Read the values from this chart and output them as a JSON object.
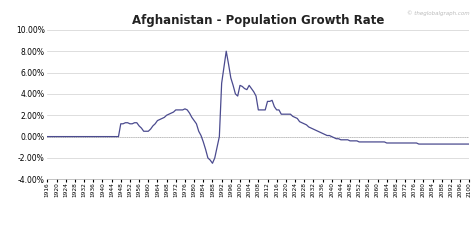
{
  "title": "Afghanistan - Population Growth Rate",
  "watermark": "© theglobalgraph.com",
  "line_color": "#4b4b8f",
  "background_color": "#ffffff",
  "grid_color": "#d0d0d0",
  "zero_line_color": "#b0b0b0",
  "ylim": [
    -0.04,
    0.1
  ],
  "yticks": [
    -0.04,
    -0.02,
    0.0,
    0.02,
    0.04,
    0.06,
    0.08,
    0.1
  ],
  "years": [
    1916,
    1917,
    1918,
    1919,
    1920,
    1921,
    1922,
    1923,
    1924,
    1925,
    1926,
    1927,
    1928,
    1929,
    1930,
    1931,
    1932,
    1933,
    1934,
    1935,
    1936,
    1937,
    1938,
    1939,
    1940,
    1941,
    1942,
    1943,
    1944,
    1945,
    1946,
    1947,
    1948,
    1949,
    1950,
    1951,
    1952,
    1953,
    1954,
    1955,
    1956,
    1957,
    1958,
    1959,
    1960,
    1961,
    1962,
    1963,
    1964,
    1965,
    1966,
    1967,
    1968,
    1969,
    1970,
    1971,
    1972,
    1973,
    1974,
    1975,
    1976,
    1977,
    1978,
    1979,
    1980,
    1981,
    1982,
    1983,
    1984,
    1985,
    1986,
    1987,
    1988,
    1989,
    1990,
    1991,
    1992,
    1993,
    1994,
    1995,
    1996,
    1997,
    1998,
    1999,
    2000,
    2001,
    2002,
    2003,
    2004,
    2005,
    2006,
    2007,
    2008,
    2009,
    2010,
    2011,
    2012,
    2013,
    2014,
    2015,
    2016,
    2017,
    2018,
    2019,
    2020,
    2021,
    2022,
    2023,
    2024,
    2025,
    2026,
    2027,
    2028,
    2029,
    2030,
    2031,
    2032,
    2033,
    2034,
    2035,
    2036,
    2037,
    2038,
    2039,
    2040,
    2041,
    2042,
    2043,
    2044,
    2045,
    2046,
    2047,
    2048,
    2049,
    2050,
    2051,
    2052,
    2053,
    2054,
    2055,
    2056,
    2057,
    2058,
    2059,
    2060,
    2061,
    2062,
    2063,
    2064,
    2065,
    2066,
    2067,
    2068,
    2069,
    2070,
    2071,
    2072,
    2073,
    2074,
    2075,
    2076,
    2077,
    2078,
    2079,
    2080,
    2081,
    2082,
    2083,
    2084,
    2085,
    2086,
    2087,
    2088,
    2089,
    2090,
    2091,
    2092,
    2093,
    2094,
    2095,
    2096,
    2097,
    2098,
    2099,
    2100
  ],
  "values": [
    0.0,
    0.0,
    0.0,
    0.0,
    0.0,
    0.0,
    0.0,
    0.0,
    0.0,
    0.0,
    0.0,
    0.0,
    0.0,
    0.0,
    0.0,
    0.0,
    0.0,
    0.0,
    0.0,
    0.0,
    0.0,
    0.0,
    0.0,
    0.0,
    0.0,
    0.0,
    0.0,
    0.0,
    0.0,
    0.0,
    0.0,
    0.0,
    0.012,
    0.012,
    0.013,
    0.013,
    0.012,
    0.012,
    0.013,
    0.013,
    0.01,
    0.008,
    0.005,
    0.005,
    0.005,
    0.007,
    0.01,
    0.012,
    0.015,
    0.016,
    0.017,
    0.018,
    0.02,
    0.021,
    0.022,
    0.023,
    0.025,
    0.025,
    0.025,
    0.025,
    0.026,
    0.025,
    0.022,
    0.018,
    0.015,
    0.012,
    0.005,
    0.001,
    -0.005,
    -0.012,
    -0.02,
    -0.022,
    -0.025,
    -0.02,
    -0.01,
    0.0,
    0.05,
    0.065,
    0.08,
    0.068,
    0.055,
    0.048,
    0.04,
    0.038,
    0.048,
    0.047,
    0.045,
    0.044,
    0.048,
    0.045,
    0.042,
    0.038,
    0.025,
    0.025,
    0.025,
    0.025,
    0.033,
    0.033,
    0.034,
    0.028,
    0.025,
    0.025,
    0.021,
    0.021,
    0.021,
    0.021,
    0.021,
    0.019,
    0.018,
    0.017,
    0.014,
    0.013,
    0.012,
    0.011,
    0.009,
    0.008,
    0.007,
    0.006,
    0.005,
    0.004,
    0.003,
    0.002,
    0.001,
    0.001,
    0.0,
    -0.001,
    -0.002,
    -0.002,
    -0.003,
    -0.003,
    -0.003,
    -0.003,
    -0.004,
    -0.004,
    -0.004,
    -0.004,
    -0.005,
    -0.005,
    -0.005,
    -0.005,
    -0.005,
    -0.005,
    -0.005,
    -0.005,
    -0.005,
    -0.005,
    -0.005,
    -0.005,
    -0.006,
    -0.006,
    -0.006,
    -0.006,
    -0.006,
    -0.006,
    -0.006,
    -0.006,
    -0.006,
    -0.006,
    -0.006,
    -0.006,
    -0.006,
    -0.006,
    -0.007,
    -0.007,
    -0.007,
    -0.007,
    -0.007,
    -0.007,
    -0.007,
    -0.007,
    -0.007,
    -0.007,
    -0.007,
    -0.007,
    -0.007,
    -0.007,
    -0.007,
    -0.007,
    -0.007,
    -0.007,
    -0.007,
    -0.007,
    -0.007,
    -0.007,
    -0.007
  ]
}
